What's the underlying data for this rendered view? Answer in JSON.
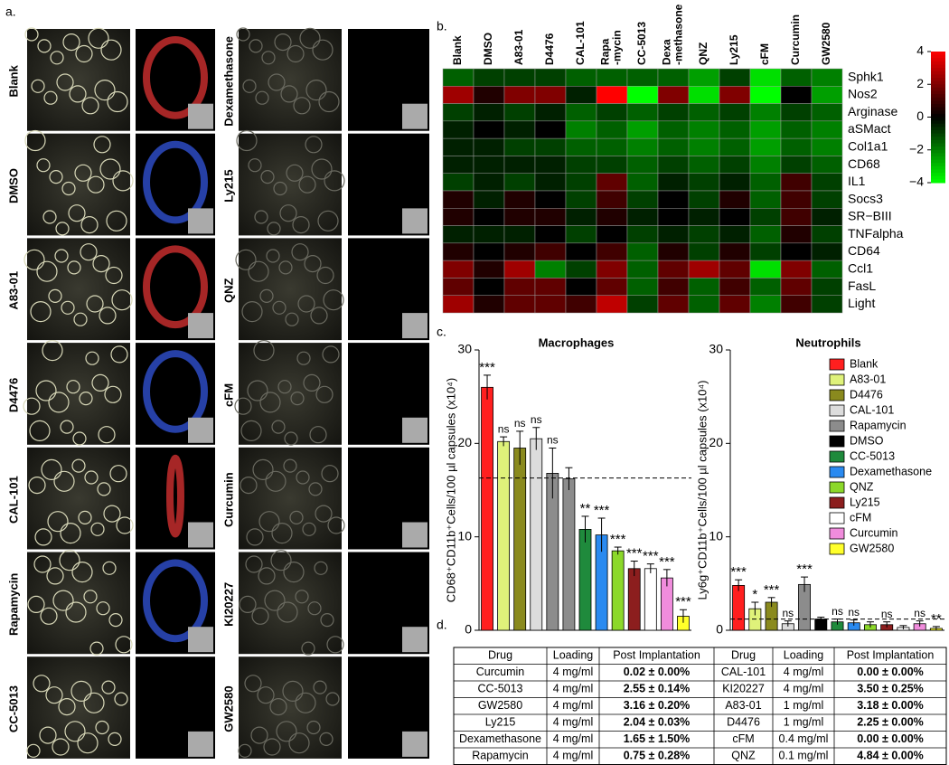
{
  "panel_labels": [
    "a.",
    "b.",
    "c.",
    "d."
  ],
  "images": {
    "left": [
      "Blank",
      "DMSO",
      "A83-01",
      "D4476",
      "CAL-101",
      "Rapamycin",
      "CC-5013"
    ],
    "right": [
      "Dexamethasone",
      "Ly215",
      "QNZ",
      "cFM",
      "Curcumin",
      "KI20227",
      "GW2580"
    ]
  },
  "chart_data": [
    {
      "type": "heatmap",
      "x": [
        "Blank",
        "DMSO",
        "A83-01",
        "D4476",
        "CAL-101",
        "Rapa-mycin",
        "CC-5013",
        "Dexa-methasone",
        "QNZ",
        "Ly215",
        "cFM",
        "Curcumin",
        "GW2580"
      ],
      "y": [
        "Sphk1",
        "Nos2",
        "Arginase",
        "aSMact",
        "Col1a1",
        "CD68",
        "IL1",
        "Socs3",
        "SR−BIII",
        "TNFalpha",
        "CD64",
        "Ccl1",
        "FasL",
        "Light"
      ],
      "values": [
        [
          -1.5,
          -1,
          -1,
          -1,
          -1.5,
          -1.5,
          -1.5,
          -1.5,
          -2.5,
          -1,
          -3.5,
          -1.5,
          -2
        ],
        [
          2.5,
          0.5,
          2,
          2,
          -0.5,
          4,
          -4,
          2,
          -3.5,
          2,
          -4,
          0,
          -2.5
        ],
        [
          -1,
          -0.5,
          -1,
          -0.5,
          -1.5,
          -1,
          -1.5,
          -1,
          -1.5,
          -1,
          -2,
          -1,
          -1.5
        ],
        [
          -0.5,
          0,
          -0.5,
          0,
          -2,
          -1.5,
          -2.5,
          -1.5,
          -2,
          -1.5,
          -2.5,
          -1.5,
          -2
        ],
        [
          -0.5,
          -0.5,
          -1,
          -1,
          -1.5,
          -1.5,
          -2,
          -1.5,
          -2,
          -1.5,
          -2.5,
          -1.5,
          -2
        ],
        [
          -0.5,
          -0.5,
          -0.5,
          -0.5,
          -1,
          -1,
          -1.5,
          -1,
          -1.5,
          -1,
          -2,
          -1,
          -1.5
        ],
        [
          -1,
          -0.5,
          -1,
          -0.5,
          -1,
          1.5,
          -1.5,
          -0.5,
          -1,
          -0.5,
          -1.5,
          1,
          -1
        ],
        [
          0.5,
          -0.5,
          0.5,
          0,
          -1,
          1,
          -1,
          0,
          -1,
          0.5,
          -1.5,
          1,
          -1
        ],
        [
          0.5,
          0,
          0.5,
          0.5,
          -0.5,
          0.5,
          -0.5,
          0,
          -0.5,
          0,
          -1,
          1,
          -0.5
        ],
        [
          -0.5,
          -0.5,
          -0.5,
          0,
          -1,
          0,
          -1,
          -0.5,
          -1,
          -0.5,
          -1.5,
          0.5,
          -1
        ],
        [
          0.5,
          0,
          0.5,
          1,
          0,
          1,
          -1.5,
          0.5,
          -1,
          0.5,
          -1,
          0,
          -0.5
        ],
        [
          2,
          0.5,
          2.5,
          -2,
          -1,
          2,
          -1.5,
          1.5,
          2.5,
          1.5,
          -3.5,
          2,
          -1.5
        ],
        [
          1.5,
          0,
          1.5,
          1.5,
          0,
          1.5,
          -1.5,
          1,
          -1.5,
          1,
          -1.5,
          1.5,
          -1
        ],
        [
          2.5,
          0.5,
          1.5,
          1.5,
          1,
          3,
          -1,
          1.5,
          -1.5,
          1.5,
          -2,
          1,
          -1
        ]
      ],
      "zlim": [
        -4,
        4
      ],
      "zticks": [
        4,
        2,
        0,
        {
          "value": -2,
          "label": "−2"
        },
        {
          "value": -4,
          "label": "−4"
        }
      ],
      "colors": [
        "#00ff00",
        "#000000",
        "#ff0000"
      ]
    },
    {
      "type": "bar",
      "title": "Macrophages",
      "ylabel": "CD68⁺CD11b⁺Cells/100 µl capsules (x10⁴)",
      "categories": [
        "Blank",
        "A83-01",
        "D4476",
        "CAL-101",
        "Rapamycin",
        "DMSO",
        "CC-5013",
        "Dexamethasone",
        "QNZ",
        "Ly215",
        "cFM",
        "Curcumin",
        "GW2580"
      ],
      "colors": [
        "#ff1f1f",
        "#dff27a",
        "#8a8a1e",
        "#dcdcdc",
        "#8c8c8c",
        "#8c8c8c",
        "#1f8a3c",
        "#2a8af0",
        "#8cd82a",
        "#8c1e1e",
        "#ffffff",
        "#f08cdc",
        "#ffff2a"
      ],
      "values": [
        26,
        20.2,
        19.5,
        20.5,
        16.8,
        16.2,
        10.8,
        10.2,
        8.5,
        6.6,
        6.6,
        5.6,
        1.5
      ],
      "errors": [
        1.3,
        0.5,
        1.8,
        1.2,
        2.7,
        1.2,
        1.4,
        1.8,
        0.4,
        0.8,
        0.5,
        0.9,
        0.7
      ],
      "annotations": [
        "***",
        "ns",
        "ns",
        "ns",
        "ns",
        null,
        "**",
        "***",
        "***",
        "***",
        "***",
        "***",
        "***"
      ],
      "reference_line": 16.3,
      "ylim": [
        0,
        30
      ],
      "yticks": [
        0,
        10,
        20,
        30
      ]
    },
    {
      "type": "bar",
      "title": "Neutrophils",
      "ylabel": "Ly6g⁺CD11b⁺Cells/100 µl capsules (x10⁴)",
      "categories": [
        "Blank",
        "A83-01",
        "D4476",
        "CAL-101",
        "Rapamycin",
        "DMSO",
        "CC-5013",
        "Dexamethasone",
        "QNZ",
        "Ly215",
        "cFM",
        "Curcumin",
        "GW2580"
      ],
      "colors": [
        "#ff1f1f",
        "#dff27a",
        "#8a8a1e",
        "#dcdcdc",
        "#8c8c8c",
        "#000000",
        "#1f8a3c",
        "#2a8af0",
        "#8cd82a",
        "#8c1e1e",
        "#ffffff",
        "#f08cdc",
        "#ffff2a"
      ],
      "values": [
        4.8,
        2.3,
        3.0,
        0.7,
        4.9,
        1.2,
        0.9,
        0.8,
        0.6,
        0.6,
        0.3,
        0.7,
        0.2
      ],
      "errors": [
        0.6,
        0.7,
        0.5,
        0.3,
        0.8,
        0.2,
        0.3,
        0.3,
        0.3,
        0.3,
        0.2,
        0.3,
        0.2
      ],
      "annotations": [
        "***",
        "*",
        "***",
        "ns",
        "***",
        null,
        "ns",
        "ns",
        null,
        "ns",
        null,
        "ns",
        "**"
      ],
      "reference_line": 1.2,
      "ylim": [
        0,
        30
      ],
      "yticks": [
        0,
        10,
        20,
        30
      ],
      "legend": "upper right"
    }
  ],
  "table": {
    "header": [
      "Drug",
      "Loading",
      "Post Implantation",
      "Drug",
      "Loading",
      "Post Implantation"
    ],
    "rows": [
      [
        "Curcumin",
        "4 mg/ml",
        "0.02 ± 0.00%",
        "CAL-101",
        "4 mg/ml",
        "0.00 ± 0.00%"
      ],
      [
        "CC-5013",
        "4 mg/ml",
        "2.55 ± 0.14%",
        "KI20227",
        "4 mg/ml",
        "3.50 ± 0.25%"
      ],
      [
        "GW2580",
        "4 mg/ml",
        "3.16 ± 0.20%",
        "A83-01",
        "1 mg/ml",
        "3.18 ± 0.00%"
      ],
      [
        "Ly215",
        "4 mg/ml",
        "2.04 ± 0.03%",
        "D4476",
        "1 mg/ml",
        "2.25 ± 0.00%"
      ],
      [
        "Dexamethasone",
        "4 mg/ml",
        "1.65 ± 1.50%",
        "cFM",
        "0.4 mg/ml",
        "0.00 ± 0.00%"
      ],
      [
        "Rapamycin",
        "4 mg/ml",
        "0.75 ± 0.28%",
        "QNZ",
        "0.1 mg/ml",
        "4.84 ± 0.00%"
      ]
    ]
  }
}
